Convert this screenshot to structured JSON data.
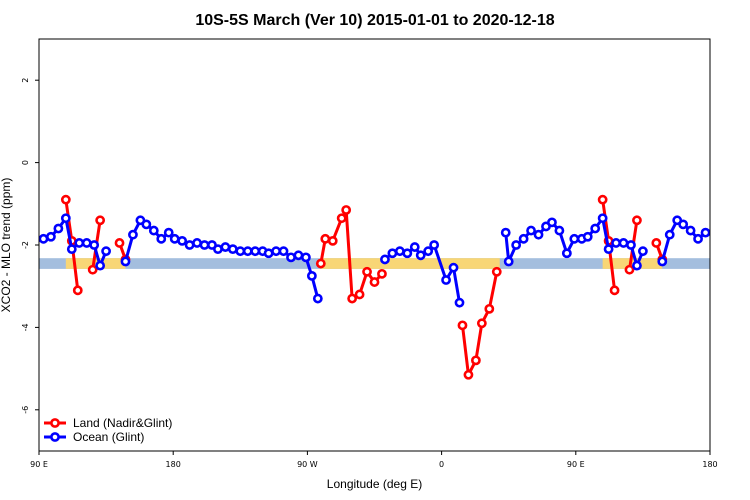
{
  "chart_data": {
    "type": "line",
    "title": "10S-5S March (Ver 10)   2015-01-01 to 2020-12-18",
    "xlabel": "Longitude (deg E)",
    "ylabel": "XCO2 - MLO trend (ppm)",
    "xlim": [
      90,
      540
    ],
    "ylim": [
      -7.0,
      3.0
    ],
    "x_ticks": [
      90,
      180,
      270,
      360,
      450,
      540
    ],
    "x_tick_labels": [
      "90 E",
      "180",
      "90 W",
      "0",
      "90 E",
      "180"
    ],
    "y_ticks": [
      2,
      0,
      -2,
      -4,
      -6
    ],
    "y_tick_labels": [
      "2",
      "0",
      "-2",
      "-4",
      "-6"
    ],
    "grid": false,
    "legend_position": "bottom-left",
    "band": {
      "y_center": -2.45,
      "half_height": 0.13,
      "colors": {
        "ocean": "#a4bede",
        "land": "#f8d676"
      }
    },
    "series": [
      {
        "name": "Land (Nadir&Glint)",
        "color": "#ff0000",
        "segments": [
          [
            [
              108,
              -0.9
            ],
            [
              112,
              -1.9
            ],
            [
              116,
              -3.1
            ]
          ],
          [
            [
              126,
              -2.6
            ],
            [
              131,
              -1.4
            ]
          ],
          [
            [
              144,
              -1.95
            ],
            [
              148,
              -2.35
            ]
          ],
          [
            [
              279,
              -2.45
            ],
            [
              282,
              -1.85
            ],
            [
              287,
              -1.9
            ],
            [
              293,
              -1.35
            ],
            [
              296,
              -1.15
            ],
            [
              300,
              -3.3
            ],
            [
              305,
              -3.2
            ],
            [
              310,
              -2.65
            ],
            [
              315,
              -2.9
            ],
            [
              320,
              -2.7
            ]
          ],
          [
            [
              374,
              -3.95
            ],
            [
              378,
              -5.15
            ],
            [
              383,
              -4.8
            ],
            [
              387,
              -3.9
            ],
            [
              392,
              -3.55
            ],
            [
              397,
              -2.65
            ]
          ],
          [
            [
              468,
              -0.9
            ],
            [
              472,
              -1.9
            ],
            [
              476,
              -3.1
            ]
          ],
          [
            [
              486,
              -2.6
            ],
            [
              491,
              -1.4
            ]
          ],
          [
            [
              504,
              -1.95
            ],
            [
              508,
              -2.35
            ]
          ]
        ]
      },
      {
        "name": "Ocean (Glint)",
        "color": "#0000ff",
        "segments": [
          [
            [
              93,
              -1.85
            ],
            [
              98,
              -1.8
            ],
            [
              103,
              -1.6
            ],
            [
              108,
              -1.35
            ],
            [
              112,
              -2.1
            ],
            [
              117,
              -1.95
            ],
            [
              122,
              -1.95
            ],
            [
              127,
              -2.0
            ],
            [
              131,
              -2.5
            ],
            [
              135,
              -2.15
            ]
          ],
          [
            [
              148,
              -2.4
            ],
            [
              153,
              -1.75
            ],
            [
              158,
              -1.4
            ],
            [
              162,
              -1.5
            ],
            [
              167,
              -1.65
            ],
            [
              172,
              -1.85
            ],
            [
              177,
              -1.7
            ],
            [
              181,
              -1.85
            ],
            [
              186,
              -1.9
            ],
            [
              191,
              -2.0
            ],
            [
              196,
              -1.95
            ],
            [
              201,
              -2.0
            ],
            [
              206,
              -2.0
            ],
            [
              210,
              -2.1
            ],
            [
              215,
              -2.05
            ],
            [
              220,
              -2.1
            ],
            [
              225,
              -2.15
            ],
            [
              230,
              -2.15
            ],
            [
              235,
              -2.15
            ],
            [
              240,
              -2.15
            ],
            [
              244,
              -2.2
            ],
            [
              249,
              -2.15
            ],
            [
              254,
              -2.15
            ],
            [
              259,
              -2.3
            ],
            [
              264,
              -2.25
            ],
            [
              269,
              -2.3
            ],
            [
              273,
              -2.75
            ],
            [
              277,
              -3.3
            ]
          ],
          [
            [
              322,
              -2.35
            ],
            [
              327,
              -2.2
            ],
            [
              332,
              -2.15
            ],
            [
              337,
              -2.2
            ],
            [
              342,
              -2.05
            ],
            [
              346,
              -2.25
            ],
            [
              351,
              -2.15
            ],
            [
              355,
              -2.0
            ],
            [
              363,
              -2.85
            ],
            [
              368,
              -2.55
            ],
            [
              372,
              -3.4
            ]
          ],
          [
            [
              403,
              -1.7
            ],
            [
              405,
              -2.4
            ],
            [
              410,
              -2.0
            ],
            [
              415,
              -1.85
            ],
            [
              420,
              -1.65
            ],
            [
              425,
              -1.75
            ],
            [
              430,
              -1.55
            ],
            [
              434,
              -1.45
            ],
            [
              439,
              -1.65
            ],
            [
              444,
              -2.2
            ],
            [
              449,
              -1.85
            ],
            [
              454,
              -1.85
            ],
            [
              458,
              -1.8
            ],
            [
              463,
              -1.6
            ],
            [
              468,
              -1.35
            ],
            [
              472,
              -2.1
            ],
            [
              477,
              -1.95
            ],
            [
              482,
              -1.95
            ],
            [
              487,
              -2.0
            ],
            [
              491,
              -2.5
            ],
            [
              495,
              -2.15
            ]
          ],
          [
            [
              508,
              -2.4
            ],
            [
              513,
              -1.75
            ],
            [
              518,
              -1.4
            ],
            [
              522,
              -1.5
            ],
            [
              527,
              -1.65
            ],
            [
              532,
              -1.85
            ],
            [
              537,
              -1.7
            ]
          ]
        ]
      }
    ]
  }
}
